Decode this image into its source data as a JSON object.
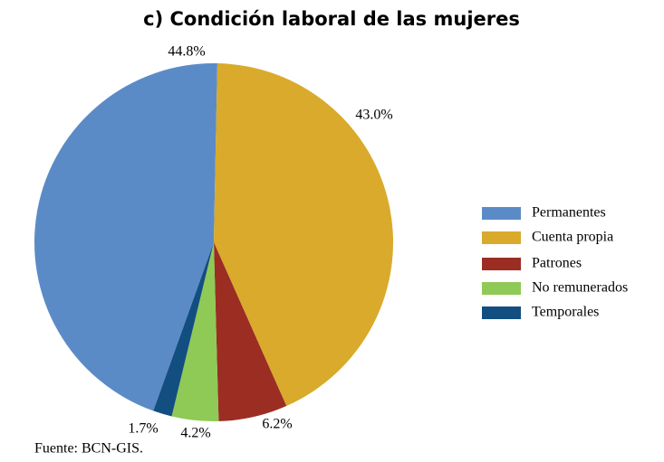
{
  "chart_data": {
    "type": "pie",
    "title": "c) Condición laboral de las mujeres",
    "categories": [
      "Permanentes",
      "Cuenta propia",
      "Patrones",
      "No remunerados",
      "Temporales"
    ],
    "values": [
      44.8,
      43.0,
      6.2,
      4.2,
      1.7
    ],
    "value_labels": [
      "44.8%",
      "43.0%",
      "6.2%",
      "4.2%",
      "1.7%"
    ],
    "colors": [
      "#5b8bc7",
      "#d9aa2b",
      "#9b2d23",
      "#8fc956",
      "#134e80"
    ],
    "legend": "right",
    "source": "Fuente: BCN-GIS."
  }
}
